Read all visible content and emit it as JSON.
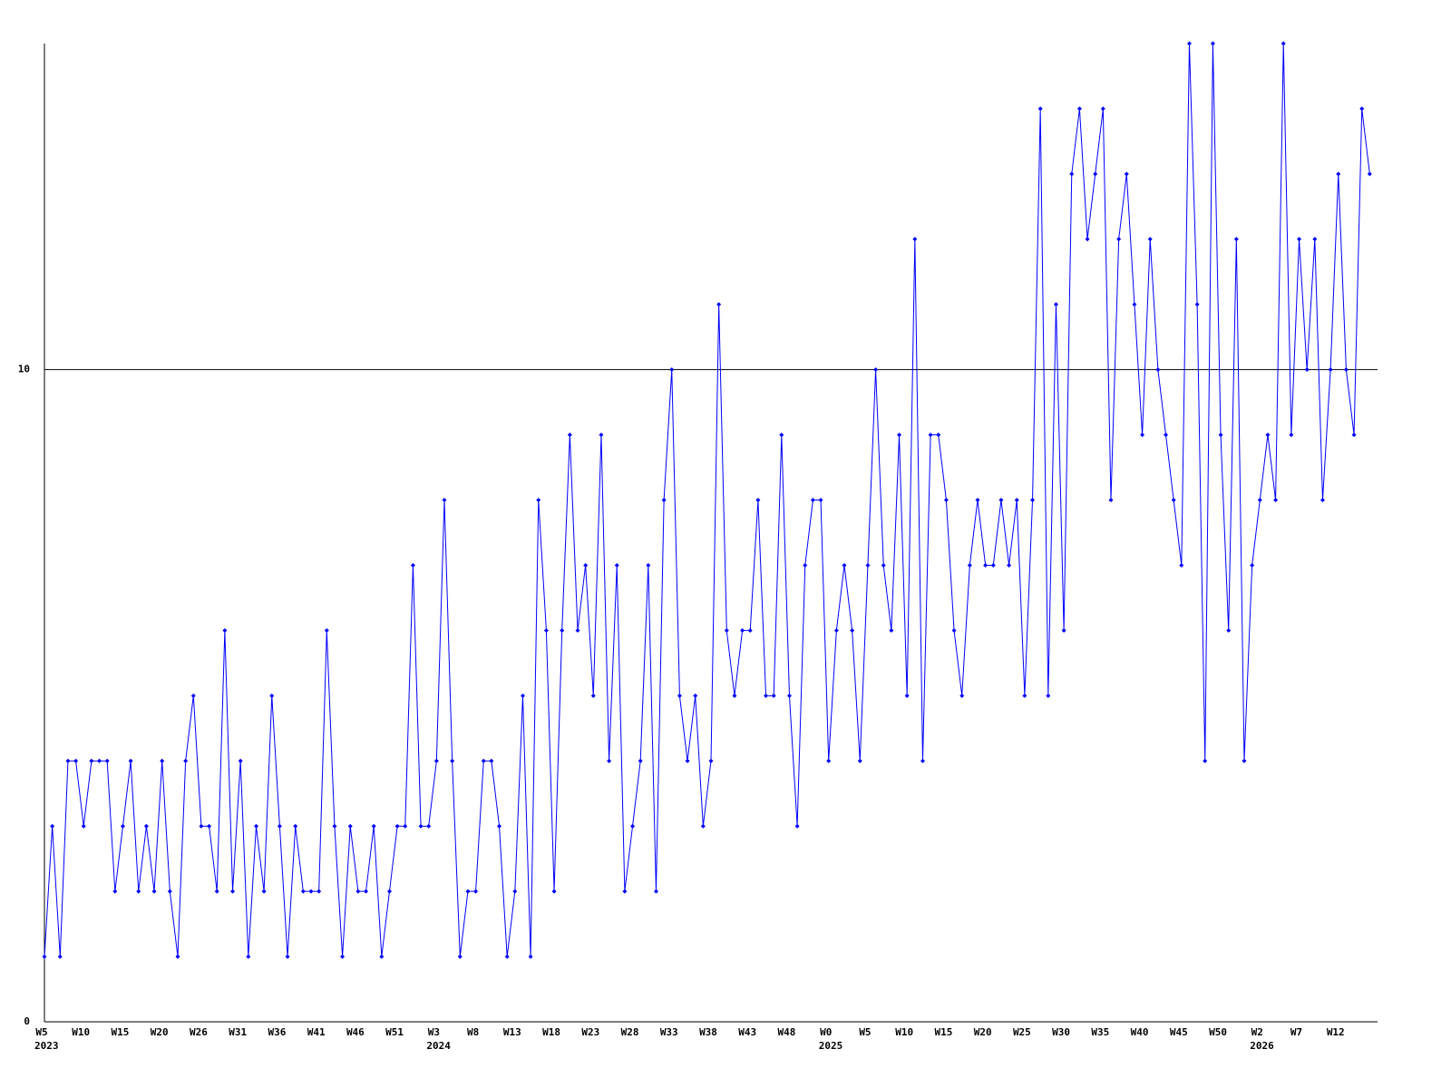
{
  "chart_data": {
    "type": "line",
    "categories": [
      "W5",
      null,
      null,
      null,
      null,
      "W10",
      null,
      null,
      null,
      null,
      "W15",
      null,
      null,
      null,
      null,
      "W20",
      null,
      null,
      null,
      null,
      "W26",
      null,
      null,
      null,
      null,
      "W31",
      null,
      null,
      null,
      null,
      "W36",
      null,
      null,
      null,
      null,
      "W41",
      null,
      null,
      null,
      null,
      "W46",
      null,
      null,
      null,
      null,
      "W51",
      null,
      null,
      null,
      null,
      "W3",
      null,
      null,
      null,
      null,
      "W8",
      null,
      null,
      null,
      null,
      "W13",
      null,
      null,
      null,
      null,
      "W18",
      null,
      null,
      null,
      null,
      "W23",
      null,
      null,
      null,
      null,
      "W28",
      null,
      null,
      null,
      null,
      "W33",
      null,
      null,
      null,
      null,
      "W38",
      null,
      null,
      null,
      null,
      "W43",
      null,
      null,
      null,
      null,
      "W48",
      null,
      null,
      null,
      null,
      "W0",
      null,
      null,
      null,
      null,
      "W5",
      null,
      null,
      null,
      null,
      "W10",
      null,
      null,
      null,
      null,
      "W15",
      null,
      null,
      null,
      null,
      "W20",
      null,
      null,
      null,
      null,
      "W25",
      null,
      null,
      null,
      null,
      "W30",
      null,
      null,
      null,
      null,
      "W35",
      null,
      null,
      null,
      null,
      "W40",
      null,
      null,
      null,
      null,
      "W45",
      null,
      null,
      null,
      null,
      "W50",
      null,
      null,
      null,
      null,
      "W2",
      null,
      null,
      null,
      null,
      "W7",
      null,
      null,
      null,
      null,
      "W12",
      null,
      null,
      null,
      null
    ],
    "year_categories": [
      "2023",
      null,
      null,
      null,
      null,
      null,
      null,
      null,
      null,
      null,
      null,
      null,
      null,
      null,
      null,
      null,
      null,
      null,
      null,
      null,
      null,
      null,
      null,
      null,
      null,
      null,
      null,
      null,
      null,
      null,
      null,
      null,
      null,
      null,
      null,
      null,
      null,
      null,
      null,
      null,
      null,
      null,
      null,
      null,
      null,
      null,
      null,
      null,
      null,
      null,
      "2024",
      null,
      null,
      null,
      null,
      null,
      null,
      null,
      null,
      null,
      null,
      null,
      null,
      null,
      null,
      null,
      null,
      null,
      null,
      null,
      null,
      null,
      null,
      null,
      null,
      null,
      null,
      null,
      null,
      null,
      null,
      null,
      null,
      null,
      null,
      null,
      null,
      null,
      null,
      null,
      null,
      null,
      null,
      null,
      null,
      null,
      null,
      null,
      null,
      null,
      "2025",
      null,
      null,
      null,
      null,
      null,
      null,
      null,
      null,
      null,
      null,
      null,
      null,
      null,
      null,
      null,
      null,
      null,
      null,
      null,
      null,
      null,
      null,
      null,
      null,
      null,
      null,
      null,
      null,
      null,
      null,
      null,
      null,
      null,
      null,
      null,
      null,
      null,
      null,
      null,
      null,
      null,
      null,
      null,
      null,
      null,
      null,
      null,
      null,
      null,
      null,
      null,
      null,
      null,
      null,
      "2026",
      null,
      null,
      null,
      null,
      null,
      null,
      null,
      null,
      null,
      null,
      null,
      null,
      null,
      null
    ],
    "series": [
      {
        "color": "#0000ff",
        "values": [
          1,
          3,
          1,
          4,
          4,
          3,
          4,
          4,
          4,
          2,
          3,
          4,
          2,
          3,
          2,
          4,
          2,
          1,
          4,
          5,
          3,
          3,
          2,
          6,
          2,
          4,
          1,
          3,
          2,
          5,
          3,
          1,
          3,
          2,
          2,
          2,
          6,
          3,
          1,
          3,
          2,
          2,
          3,
          1,
          2,
          3,
          3,
          7,
          3,
          3,
          4,
          8,
          4,
          1,
          2,
          2,
          4,
          4,
          3,
          1,
          2,
          5,
          1,
          8,
          6,
          2,
          6,
          9,
          6,
          7,
          5,
          9,
          4,
          7,
          2,
          3,
          4,
          7,
          2,
          8,
          10,
          5,
          4,
          5,
          3,
          4,
          11,
          6,
          5,
          6,
          6,
          8,
          5,
          5,
          9,
          5,
          3,
          7,
          8,
          8,
          4,
          6,
          7,
          6,
          4,
          7,
          10,
          7,
          6,
          9,
          5,
          12,
          4,
          9,
          9,
          8,
          6,
          5,
          7,
          8,
          7,
          7,
          8,
          7,
          8,
          5,
          8,
          14,
          5,
          11,
          6,
          13,
          14,
          12,
          13,
          14,
          8,
          12,
          13,
          11,
          9,
          12,
          10,
          9,
          8,
          7,
          15,
          11,
          4,
          15,
          9,
          6,
          12,
          4,
          7,
          8,
          9,
          8,
          15,
          9,
          12,
          10,
          12,
          8,
          10,
          13,
          10,
          9,
          14,
          13
        ]
      }
    ],
    "ylim": [
      0,
      15
    ],
    "yticks": [
      0,
      10
    ],
    "grid": true
  }
}
